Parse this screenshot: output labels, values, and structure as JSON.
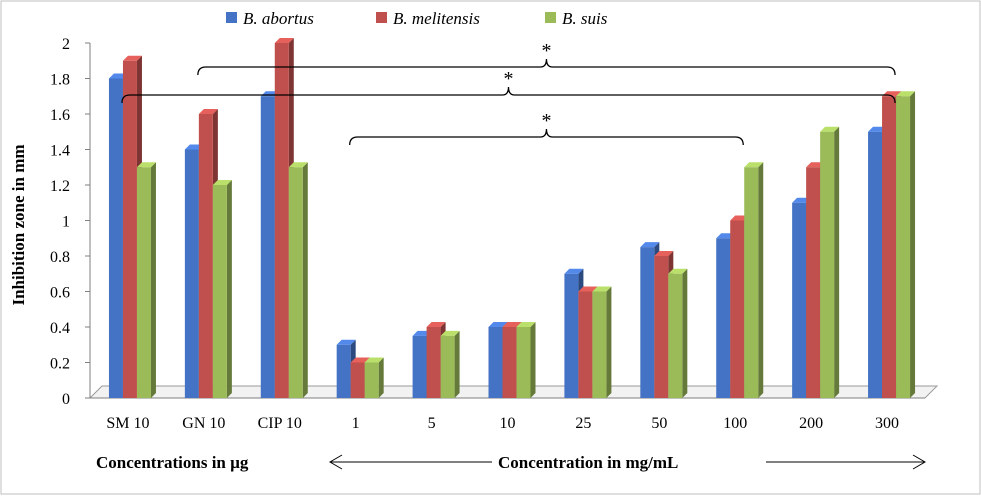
{
  "chart_data": {
    "type": "bar",
    "title": "",
    "categories": [
      "SM 10",
      "GN 10",
      "CIP 10",
      "1",
      "5",
      "10",
      "25",
      "50",
      "100",
      "200",
      "300"
    ],
    "series": [
      {
        "name": "B. abortus",
        "color": "#4472C4",
        "values": [
          1.8,
          1.4,
          1.7,
          0.3,
          0.35,
          0.4,
          0.7,
          0.85,
          0.9,
          1.1,
          1.5
        ]
      },
      {
        "name": "B. melitensis",
        "color": "#C0504D",
        "values": [
          1.9,
          1.6,
          2.0,
          0.2,
          0.4,
          0.4,
          0.6,
          0.8,
          1.0,
          1.3,
          1.7
        ]
      },
      {
        "name": "B. suis",
        "color": "#9BBB59",
        "values": [
          1.3,
          1.2,
          1.3,
          0.2,
          0.35,
          0.4,
          0.6,
          0.7,
          1.3,
          1.5,
          1.7
        ]
      }
    ],
    "ylabel": "Inhibition zone in mm",
    "ylim": [
      0,
      2
    ],
    "yticks": [
      "0",
      "0.2",
      "0.4",
      "0.6",
      "0.8",
      "1",
      "1.2",
      "1.4",
      "1.6",
      "1.8",
      "2"
    ],
    "legend_position": "top",
    "grid": false,
    "group_labels": {
      "left": "Concentrations in µg",
      "right": "Concentration in mg/mL"
    },
    "significance": [
      {
        "from": "GN 10",
        "to": "300",
        "label": "*"
      },
      {
        "from": "SM 10",
        "to": "300",
        "label": "*"
      },
      {
        "from": "1",
        "to": "100",
        "label": "*"
      }
    ]
  }
}
